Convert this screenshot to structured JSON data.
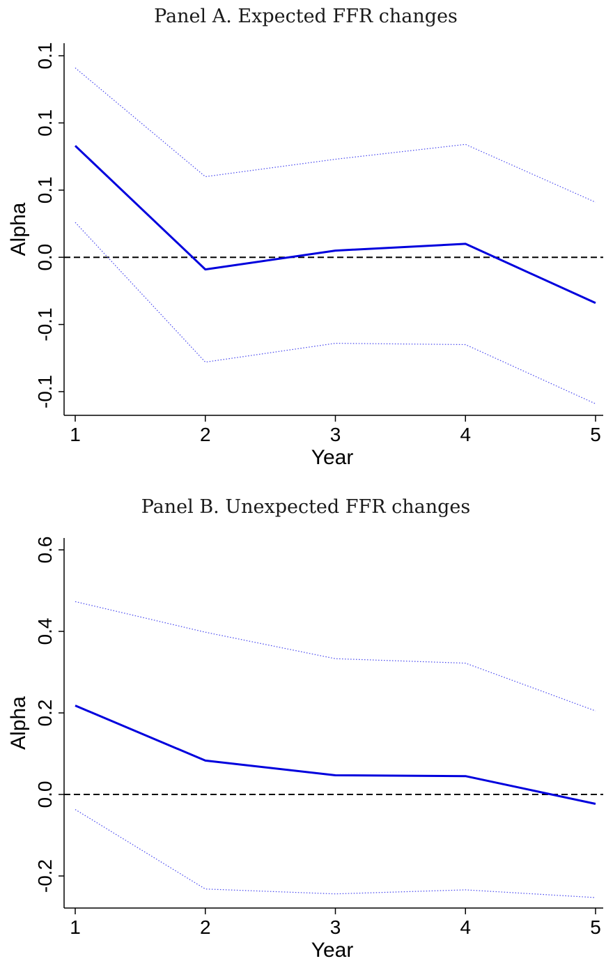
{
  "chart_data": [
    {
      "type": "line",
      "title": "Panel A. Expected FFR changes",
      "xlabel": "Year",
      "ylabel": "Alpha",
      "x": [
        1,
        2,
        3,
        4,
        5
      ],
      "xticks": [
        "1",
        "2",
        "3",
        "4",
        "5"
      ],
      "ytick_labels": [
        "-0.1",
        "-0.1",
        "0.0",
        "0.1",
        "0.1",
        "0.1"
      ],
      "ytick_values": [
        -0.1,
        -0.05,
        0.0,
        0.05,
        0.1,
        0.15
      ],
      "ylim": [
        -0.117,
        0.158
      ],
      "series": [
        {
          "role": "estimate",
          "style": "solid",
          "color": "#0000dd",
          "values": [
            0.083,
            -0.009,
            0.005,
            0.01,
            -0.034
          ]
        },
        {
          "role": "upper-bound",
          "style": "dotted",
          "color": "#4444ee",
          "values": [
            0.141,
            0.06,
            0.073,
            0.084,
            0.041
          ]
        },
        {
          "role": "lower-bound",
          "style": "dotted",
          "color": "#4444ee",
          "values": [
            0.026,
            -0.078,
            -0.064,
            -0.065,
            -0.109
          ]
        }
      ],
      "reference_line": {
        "y": 0,
        "style": "dashed",
        "color": "#000000"
      }
    },
    {
      "type": "line",
      "title": "Panel B. Unexpected FFR changes",
      "xlabel": "Year",
      "ylabel": "Alpha",
      "x": [
        1,
        2,
        3,
        4,
        5
      ],
      "xticks": [
        "1",
        "2",
        "3",
        "4",
        "5"
      ],
      "ytick_labels": [
        "-0.2",
        "0.0",
        "0.2",
        "0.4",
        "0.6"
      ],
      "ytick_values": [
        -0.2,
        0.0,
        0.2,
        0.4,
        0.6
      ],
      "ylim": [
        -0.276,
        0.626
      ],
      "series": [
        {
          "role": "estimate",
          "style": "solid",
          "color": "#0000dd",
          "values": [
            0.218,
            0.083,
            0.047,
            0.045,
            -0.023
          ]
        },
        {
          "role": "upper-bound",
          "style": "dotted",
          "color": "#4444ee",
          "values": [
            0.473,
            0.398,
            0.333,
            0.322,
            0.205
          ]
        },
        {
          "role": "lower-bound",
          "style": "dotted",
          "color": "#4444ee",
          "values": [
            -0.037,
            -0.232,
            -0.244,
            -0.234,
            -0.253
          ]
        }
      ],
      "reference_line": {
        "y": 0,
        "style": "dashed",
        "color": "#000000"
      }
    }
  ]
}
